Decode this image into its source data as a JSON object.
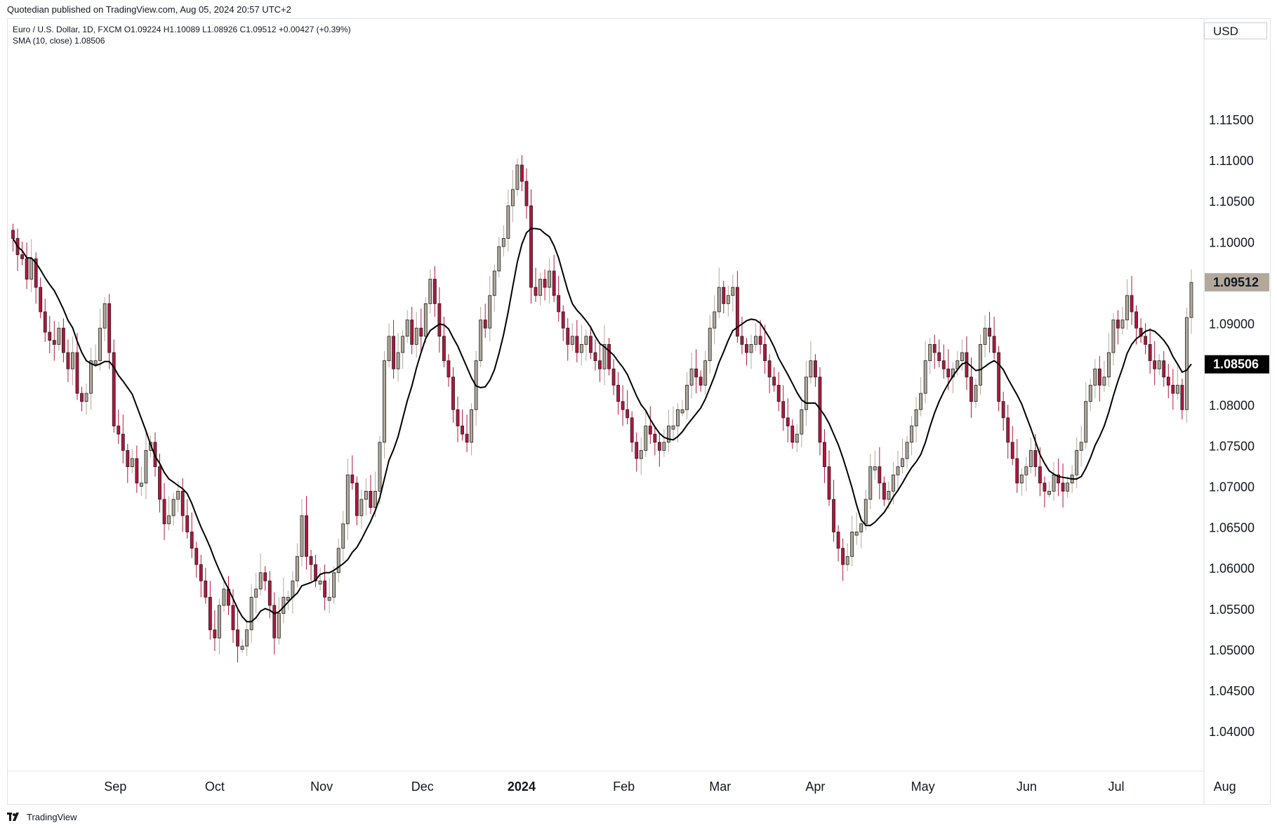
{
  "header": {
    "caption": "Quotedian published on TradingView.com, Aug 05, 2024 20:57 UTC+2"
  },
  "legend": {
    "symbol_line": "Euro / U.S. Dollar, 1D, FXCM  O1.09224  H1.10089  L1.08926  C1.09512  +0.00427 (+0.39%)",
    "sma_line": "SMA (10, close)  1.08506"
  },
  "currency": "USD",
  "footer": {
    "brand": "TradingView"
  },
  "colors": {
    "up_body": "#b2a99c",
    "down_body": "#b2163d",
    "wick_up": "#b2a99c",
    "wick_down": "#b2163d",
    "sma_line": "#000000",
    "last_price_badge": "#b2a99c",
    "sma_badge": "#000000"
  },
  "chart_data": {
    "type": "candlestick",
    "title": "Euro / U.S. Dollar, 1D, FXCM",
    "ylim": [
      1.035,
      1.125
    ],
    "y_ticks": [
      "1.04000",
      "1.04500",
      "1.05000",
      "1.05500",
      "1.06000",
      "1.06500",
      "1.07000",
      "1.07500",
      "1.08000",
      "1.08500",
      "1.09000",
      "1.09500",
      "1.10000",
      "1.10500",
      "1.11000",
      "1.11500"
    ],
    "y_tick_values": [
      1.04,
      1.045,
      1.05,
      1.055,
      1.06,
      1.065,
      1.07,
      1.075,
      1.08,
      1.085,
      1.09,
      1.095,
      1.1,
      1.105,
      1.11,
      1.115
    ],
    "x_ticks": [
      {
        "label": "Sep",
        "index": 22,
        "bold": false
      },
      {
        "label": "Oct",
        "index": 44,
        "bold": false
      },
      {
        "label": "Nov",
        "index": 67,
        "bold": false
      },
      {
        "label": "Dec",
        "index": 89,
        "bold": false
      },
      {
        "label": "2024",
        "index": 110,
        "bold": true
      },
      {
        "label": "Feb",
        "index": 133,
        "bold": false
      },
      {
        "label": "Mar",
        "index": 154,
        "bold": false
      },
      {
        "label": "Apr",
        "index": 175,
        "bold": false
      },
      {
        "label": "May",
        "index": 198,
        "bold": false
      },
      {
        "label": "Jun",
        "index": 221,
        "bold": false
      },
      {
        "label": "Jul",
        "index": 241,
        "bold": false
      },
      {
        "label": "Aug",
        "index": 264,
        "bold": false
      }
    ],
    "closes": [
      1.1005,
      1.0985,
      1.098,
      1.0955,
      1.098,
      1.0945,
      1.0915,
      1.089,
      1.088,
      1.0875,
      1.0895,
      1.0865,
      1.0845,
      1.0865,
      1.0815,
      1.0805,
      1.0815,
      1.0855,
      1.0855,
      1.0895,
      1.0925,
      1.0865,
      1.0775,
      1.0765,
      1.0745,
      1.0725,
      1.0735,
      1.0705,
      1.0705,
      1.0745,
      1.0755,
      1.0725,
      1.0685,
      1.0655,
      1.0665,
      1.0685,
      1.0695,
      1.0665,
      1.0645,
      1.0625,
      1.0605,
      1.0585,
      1.0565,
      1.0525,
      1.0515,
      1.0555,
      1.0575,
      1.0555,
      1.0525,
      1.0505,
      1.0505,
      1.0525,
      1.0565,
      1.0575,
      1.0595,
      1.0585,
      1.0555,
      1.0515,
      1.0545,
      1.0565,
      1.0565,
      1.0585,
      1.0615,
      1.0665,
      1.0615,
      1.0605,
      1.0585,
      1.0585,
      1.0565,
      1.0565,
      1.0595,
      1.0625,
      1.0655,
      1.0715,
      1.0705,
      1.0665,
      1.0685,
      1.0695,
      1.0675,
      1.0695,
      1.0755,
      1.0855,
      1.0885,
      1.0845,
      1.0865,
      1.0885,
      1.0905,
      1.0875,
      1.0895,
      1.0885,
      1.0925,
      1.0955,
      1.0925,
      1.0885,
      1.0855,
      1.0835,
      1.0795,
      1.0775,
      1.0765,
      1.0755,
      1.0795,
      1.0855,
      1.0905,
      1.0895,
      1.0935,
      1.0965,
      1.0995,
      1.1005,
      1.1045,
      1.1065,
      1.1095,
      1.1075,
      1.1045,
      1.0945,
      1.0935,
      1.0955,
      1.0945,
      1.0965,
      1.0935,
      1.0915,
      1.0895,
      1.0875,
      1.0885,
      1.0865,
      1.0875,
      1.0885,
      1.0865,
      1.0855,
      1.0845,
      1.0875,
      1.0845,
      1.0825,
      1.0805,
      1.0795,
      1.0785,
      1.0755,
      1.0735,
      1.0745,
      1.0775,
      1.0765,
      1.0755,
      1.0745,
      1.0755,
      1.0775,
      1.0775,
      1.0795,
      1.0795,
      1.0825,
      1.0845,
      1.0835,
      1.0825,
      1.0855,
      1.0895,
      1.0915,
      1.0945,
      1.0925,
      1.0935,
      1.0945,
      1.0885,
      1.0875,
      1.0865,
      1.0875,
      1.0885,
      1.0875,
      1.0855,
      1.0835,
      1.0825,
      1.0805,
      1.0785,
      1.0775,
      1.0755,
      1.0765,
      1.0795,
      1.0835,
      1.0855,
      1.0835,
      1.0755,
      1.0725,
      1.0685,
      1.0645,
      1.0625,
      1.0605,
      1.0615,
      1.0645,
      1.0645,
      1.0655,
      1.0685,
      1.0725,
      1.0725,
      1.0705,
      1.0685,
      1.0695,
      1.0715,
      1.0725,
      1.0735,
      1.0755,
      1.0775,
      1.0795,
      1.0815,
      1.0855,
      1.0875,
      1.0865,
      1.0855,
      1.0845,
      1.0835,
      1.0845,
      1.0855,
      1.0865,
      1.0835,
      1.0805,
      1.0825,
      1.0875,
      1.0895,
      1.0885,
      1.0865,
      1.0805,
      1.0785,
      1.0755,
      1.0735,
      1.0705,
      1.0715,
      1.0725,
      1.0745,
      1.0725,
      1.0705,
      1.0695,
      1.0695,
      1.0715,
      1.0705,
      1.0695,
      1.0705,
      1.0715,
      1.0745,
      1.0755,
      1.0805,
      1.0825,
      1.0845,
      1.0825,
      1.0835,
      1.0865,
      1.0905,
      1.0895,
      1.0905,
      1.0935,
      1.0915,
      1.0895,
      1.0885,
      1.0875,
      1.0855,
      1.0845,
      1.0855,
      1.0835,
      1.0825,
      1.0815,
      1.0825,
      1.0795,
      1.0908,
      1.0951
    ],
    "sma_last": 1.08506,
    "last_close": 1.09512,
    "last_price_label": "1.09512",
    "sma_label": "1.08506"
  }
}
